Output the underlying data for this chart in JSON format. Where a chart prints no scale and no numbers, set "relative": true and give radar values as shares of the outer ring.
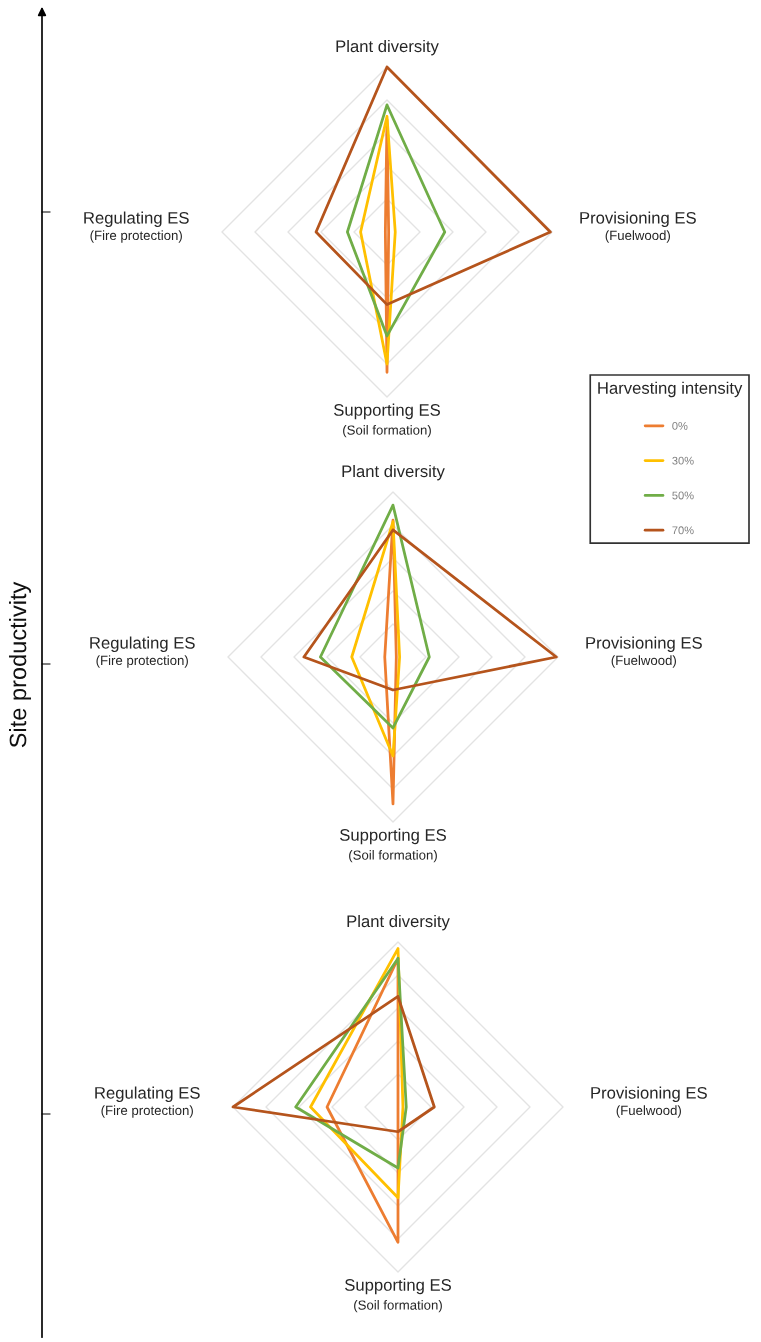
{
  "chart_data": [
    {
      "type": "radar",
      "relative": true,
      "grid": true,
      "legend": "right",
      "legend_title": "Harvesting intensity",
      "annotations": [
        "Site productivity"
      ],
      "categories": [
        "Plant diversity",
        "Provisioning ES\n(Fuelwood)",
        "Supporting ES\n(Soil formation)",
        "Regulating ES\n(Fire protection)"
      ],
      "series": [
        {
          "name": "0%",
          "color": "#ed7d31",
          "values": [
            0.68,
            0.01,
            0.85,
            0.01
          ]
        },
        {
          "name": "30%",
          "color": "#ffc000",
          "values": [
            0.7,
            0.05,
            0.8,
            0.16
          ]
        },
        {
          "name": "50%",
          "color": "#70ad47",
          "values": [
            0.77,
            0.35,
            0.63,
            0.24
          ]
        },
        {
          "name": "70%",
          "color": "#b5541c",
          "values": [
            1.0,
            0.99,
            0.44,
            0.43
          ]
        }
      ]
    },
    {
      "type": "radar",
      "relative": true,
      "grid": true,
      "categories": [
        "Plant diversity",
        "Provisioning ES\n(Fuelwood)",
        "Supporting ES\n(Soil formation)",
        "Regulating ES\n(Fire protection)"
      ],
      "series": [
        {
          "color": "#ed7d31",
          "values": [
            0.83,
            0.02,
            0.89,
            0.05
          ]
        },
        {
          "color": "#ffc000",
          "values": [
            0.82,
            0.04,
            0.6,
            0.25
          ]
        },
        {
          "color": "#70ad47",
          "values": [
            0.92,
            0.22,
            0.43,
            0.44
          ]
        },
        {
          "color": "#b5541c",
          "values": [
            0.77,
            0.99,
            0.2,
            0.54
          ]
        }
      ]
    },
    {
      "type": "radar",
      "relative": true,
      "grid": true,
      "categories": [
        "Plant diversity",
        "Provisioning ES\n(Fuelwood)",
        "Supporting ES\n(Soil formation)",
        "Regulating ES\n(Fire protection)"
      ],
      "series": [
        {
          "color": "#ed7d31",
          "values": [
            0.9,
            0.0,
            0.82,
            0.43
          ]
        },
        {
          "color": "#ffc000",
          "values": [
            0.96,
            0.03,
            0.55,
            0.53
          ]
        },
        {
          "color": "#70ad47",
          "values": [
            0.9,
            0.05,
            0.37,
            0.62
          ]
        },
        {
          "color": "#b5541c",
          "values": [
            0.67,
            0.22,
            0.15,
            1.0
          ]
        }
      ]
    }
  ]
}
